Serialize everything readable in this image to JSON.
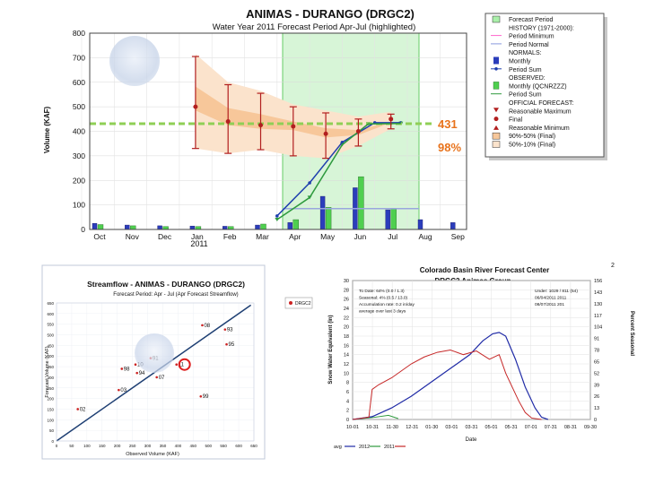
{
  "chart_data": [
    {
      "type": "bar",
      "title": "ANIMAS - DURANGO    (DRGC2)",
      "subtitle": "Water Year 2011  Forecast Period Apr-Jul (highlighted)",
      "ylabel": "Volume (KAF)",
      "ylim": [
        0,
        800
      ],
      "yticks": [
        0,
        100,
        200,
        300,
        400,
        500,
        600,
        700,
        800
      ],
      "months": [
        "Oct",
        "Nov",
        "Dec",
        "Jan",
        "Feb",
        "Mar",
        "Apr",
        "May",
        "Jun",
        "Jul",
        "Aug",
        "Sep"
      ],
      "year_label": "2011",
      "series": [
        {
          "name": "NORMALS: Monthly",
          "values": [
            25,
            18,
            15,
            14,
            13,
            18,
            28,
            135,
            170,
            80,
            40,
            28
          ]
        },
        {
          "name": "OBSERVED: Monthly (QCNRZZZ)",
          "values": [
            20,
            15,
            12,
            12,
            12,
            22,
            40,
            90,
            215,
            85,
            null,
            null
          ]
        }
      ],
      "normal_period_sum": [
        [
          6.5,
          55
        ],
        [
          7.5,
          190
        ],
        [
          8.5,
          355
        ],
        [
          9.5,
          435
        ],
        [
          10.3,
          435
        ]
      ],
      "observed_period_sum": [
        [
          6.5,
          40
        ],
        [
          7.5,
          130
        ],
        [
          8.5,
          345
        ],
        [
          9.3,
          430
        ],
        [
          10.3,
          432
        ]
      ],
      "period_normal_value": 431,
      "forecasts": [
        {
          "x": 3,
          "max": 705,
          "final": 500,
          "min": 330
        },
        {
          "x": 4,
          "max": 590,
          "final": 440,
          "min": 310
        },
        {
          "x": 5,
          "max": 555,
          "final": 425,
          "min": 325
        },
        {
          "x": 6,
          "max": 500,
          "final": 420,
          "min": 300
        },
        {
          "x": 7,
          "max": 475,
          "final": 390,
          "min": 290
        },
        {
          "x": 8,
          "max": 450,
          "final": 400,
          "min": 340
        },
        {
          "x": 9,
          "max": 470,
          "final": 450,
          "min": 410
        }
      ],
      "annotation_value": "431",
      "annotation_percent": "98%",
      "legend": [
        "Forecast Period",
        "HISTORY (1971-2000):",
        "Period Minimum",
        "Period Normal",
        "NORMALS:",
        "Monthly",
        "Period Sum",
        "OBSERVED:",
        "Monthly (QCNRZZZ)",
        "Period Sum",
        "OFFICIAL FORECAST:",
        "Reasonable Maximum",
        "Final",
        "Reasonable Minimum",
        "90%-50% (Final)",
        "50%-10% (Final)"
      ]
    },
    {
      "type": "scatter",
      "title": "Streamflow - ANIMAS - DURANGO (DRGC2)",
      "subtitle": "Forecast Period: Apr - Jul (Apr Forecast Streamflow)",
      "xlabel": "Observed Volume (KAF)",
      "ylabel": "Forecast Volume (KAF)",
      "xlim": [
        0,
        650
      ],
      "ylim": [
        0,
        650
      ],
      "ticks": [
        0,
        50,
        100,
        150,
        200,
        250,
        300,
        350,
        400,
        450,
        500,
        550,
        600,
        650
      ],
      "legend": "DRGC2",
      "points": [
        {
          "label": "08",
          "x": 480,
          "y": 545
        },
        {
          "label": "93",
          "x": 555,
          "y": 525
        },
        {
          "label": "95",
          "x": 560,
          "y": 455
        },
        {
          "label": "91",
          "x": 310,
          "y": 390
        },
        {
          "label": "10",
          "x": 260,
          "y": 360
        },
        {
          "label": "98",
          "x": 215,
          "y": 340
        },
        {
          "label": "94",
          "x": 265,
          "y": 320
        },
        {
          "label": "99",
          "x": 475,
          "y": 210
        },
        {
          "label": "07",
          "x": 330,
          "y": 300
        },
        {
          "label": "02",
          "x": 70,
          "y": 150
        },
        {
          "label": "03",
          "x": 205,
          "y": 240
        },
        {
          "label": "11",
          "x": 395,
          "y": 360
        }
      ]
    },
    {
      "type": "line",
      "title": "Colorado Basin River Forecast Center",
      "subtitle": "DRGC2 Animas  Group",
      "xlabel": "Date",
      "ylabel": "Snow Water Equivalent (in)",
      "y2label": "Percent Seasonal",
      "ylim": [
        0,
        30
      ],
      "yticks": [
        0,
        2,
        4,
        6,
        8,
        10,
        12,
        14,
        16,
        18,
        20,
        22,
        24,
        26,
        28,
        30
      ],
      "y2ticks": [
        0,
        13,
        26,
        39,
        52,
        65,
        78,
        91,
        104,
        117,
        130,
        143,
        156
      ],
      "xticks": [
        "10-01",
        "10-31",
        "11-30",
        "12-31",
        "01-30",
        "03-01",
        "03-31",
        "05-01",
        "05-31",
        "07-01",
        "07-31",
        "08-31",
        "09-30"
      ],
      "info_left": [
        "To Date: 64% (0.0 / 1.3)",
        "Seasonal: 4% (0.5 / 13.0)",
        "Accumulation rate: 0.2 in/day",
        "average over last 3 days"
      ],
      "info_right": [
        "Under: 1029 / 811 (54)",
        "06/04/2011 2011",
        "08/07/2011 201"
      ],
      "legend": [
        "avg",
        "2012",
        "2011"
      ],
      "series_avg": [
        [
          0,
          0
        ],
        [
          30,
          0.6
        ],
        [
          60,
          2.5
        ],
        [
          90,
          5
        ],
        [
          120,
          8
        ],
        [
          150,
          11
        ],
        [
          180,
          14
        ],
        [
          200,
          17
        ],
        [
          215,
          18.5
        ],
        [
          225,
          18.8
        ],
        [
          235,
          18
        ],
        [
          250,
          13
        ],
        [
          265,
          7
        ],
        [
          280,
          2.5
        ],
        [
          290,
          0.5
        ],
        [
          300,
          0
        ]
      ],
      "series_2011": [
        [
          0,
          0
        ],
        [
          15,
          0.3
        ],
        [
          25,
          0.5
        ],
        [
          30,
          6.5
        ],
        [
          40,
          7.5
        ],
        [
          60,
          9
        ],
        [
          75,
          10.5
        ],
        [
          90,
          12
        ],
        [
          110,
          13.5
        ],
        [
          130,
          14.5
        ],
        [
          150,
          15
        ],
        [
          170,
          14
        ],
        [
          190,
          14.8
        ],
        [
          210,
          13
        ],
        [
          225,
          14
        ],
        [
          235,
          10
        ],
        [
          245,
          7
        ],
        [
          255,
          4
        ],
        [
          265,
          1.5
        ],
        [
          275,
          0.3
        ],
        [
          290,
          0
        ]
      ],
      "series_2012": [
        [
          0,
          0
        ],
        [
          30,
          0.4
        ],
        [
          55,
          0.9
        ],
        [
          70,
          0.2
        ]
      ]
    }
  ],
  "map": {
    "code": "2"
  }
}
